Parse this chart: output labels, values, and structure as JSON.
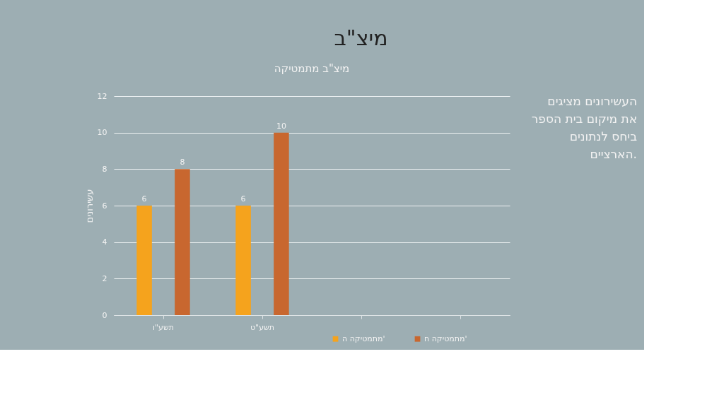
{
  "chart_data": {
    "type": "bar",
    "title": "מיצ\"ב",
    "subtitle": "מיצ\"ב מתמטיקה",
    "ylabel": "עשירונים",
    "categories": [
      "תשע\"ו",
      "תשע\"ט",
      null,
      null
    ],
    "series": [
      {
        "name": "מתמטיקה ה'",
        "color": "#f5a31d",
        "values": [
          6,
          6,
          null,
          null
        ]
      },
      {
        "name": "מתמטיקה ח'",
        "color": "#c8672f",
        "values": [
          8,
          10,
          null,
          null
        ]
      }
    ],
    "ylim": [
      0,
      12
    ],
    "yticks": [
      0,
      2,
      4,
      6,
      8,
      10,
      12
    ],
    "grid": "y",
    "legend": "bottom right",
    "data_labels": true,
    "annotations": [
      "העשירונים מציגים את מיקום בית הספר ביחס לנתונים הארציים."
    ]
  }
}
